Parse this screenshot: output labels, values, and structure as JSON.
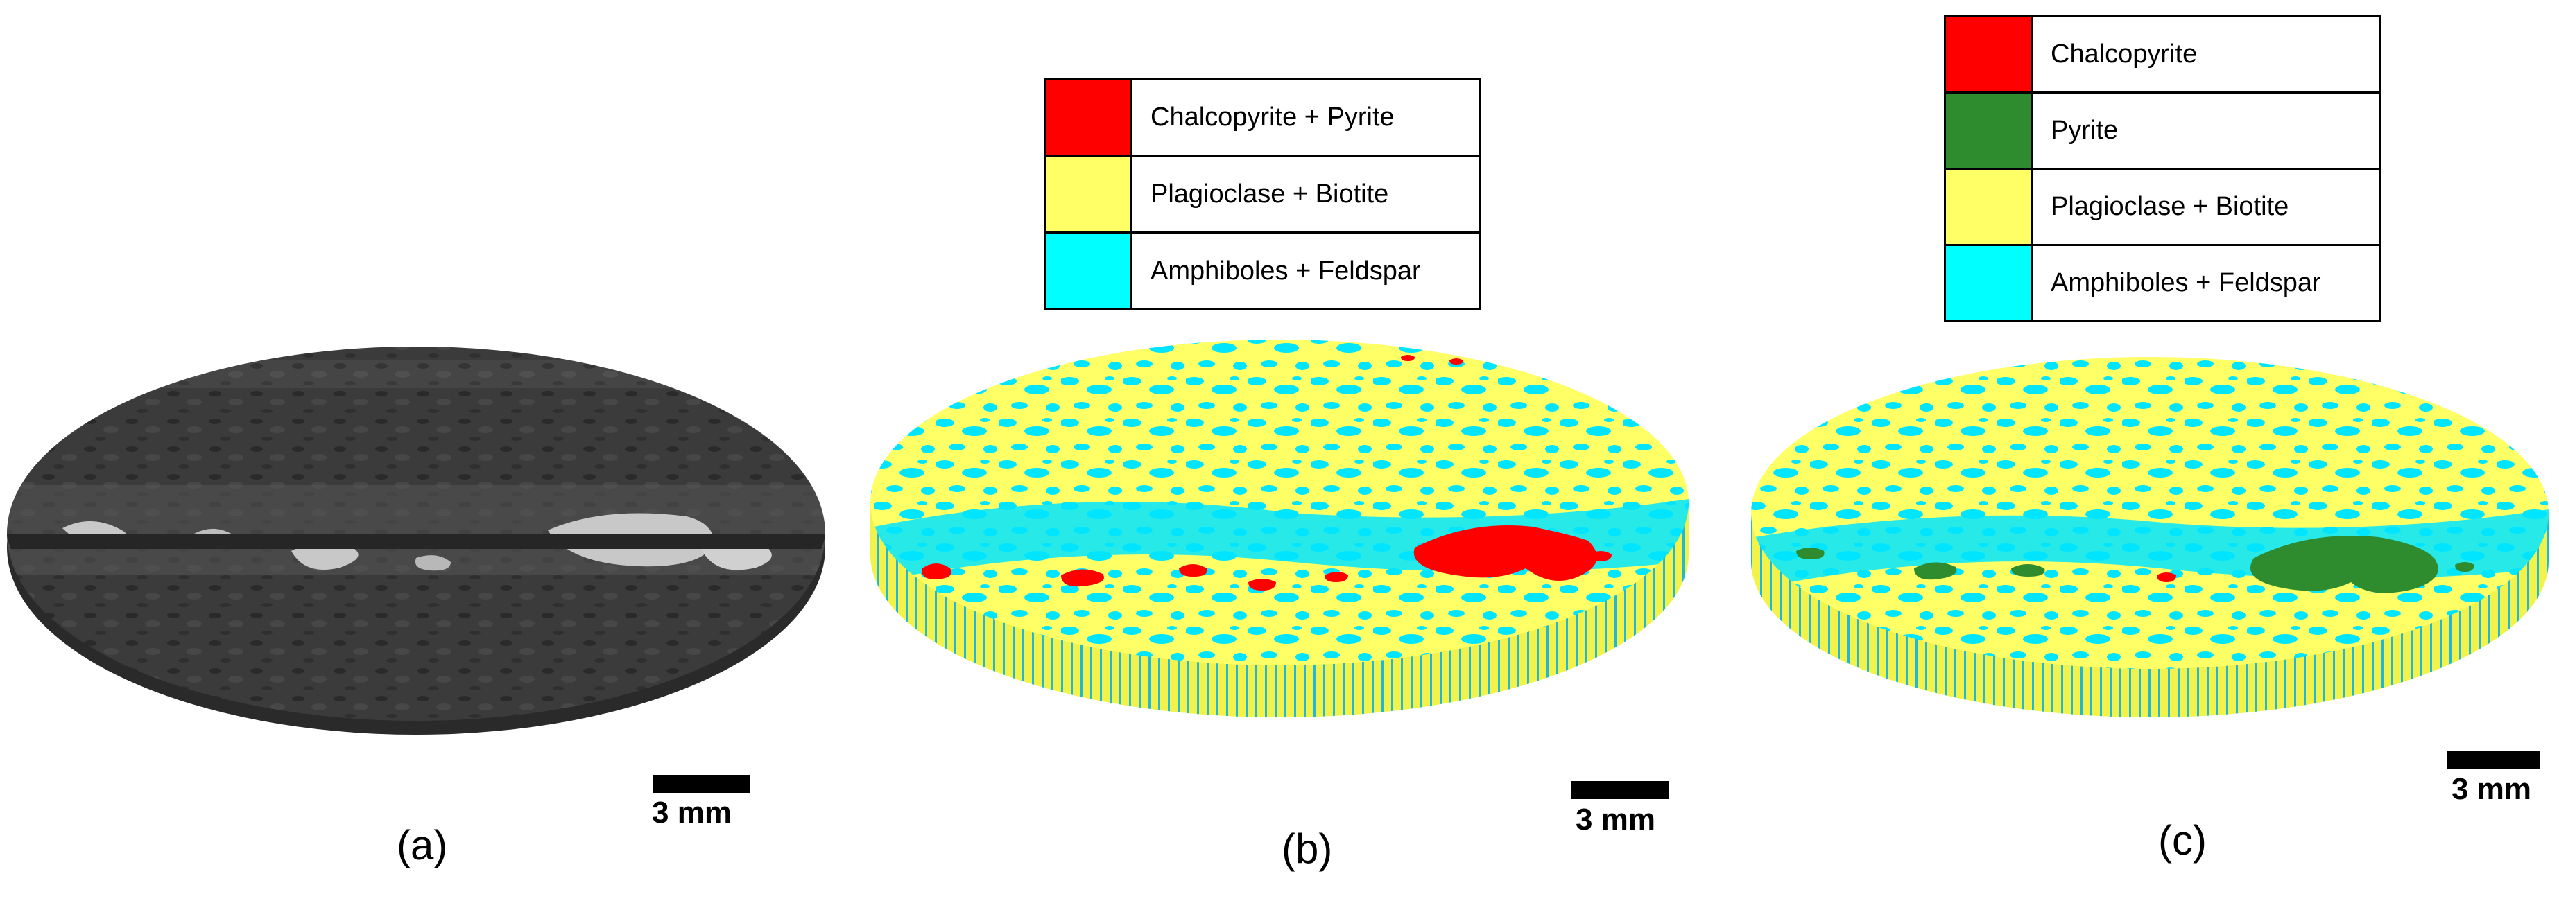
{
  "colors": {
    "red": "#ff0000",
    "green": "#2e8b2e",
    "yellow": "#ffff66",
    "cyan": "#00ffff",
    "scan_dark": "#3a3a3a",
    "scan_bright": "#c8c8c8"
  },
  "panels": [
    {
      "id": "a",
      "caption": "(a)",
      "scale_label": "3 mm",
      "image": "grayscale-ct-scan-of-core-disc"
    },
    {
      "id": "b",
      "caption": "(b)",
      "scale_label": "3 mm",
      "image": "segmented-core-disc-three-phases"
    },
    {
      "id": "c",
      "caption": "(c)",
      "scale_label": "3 mm",
      "image": "segmented-core-disc-four-phases"
    }
  ],
  "legend_b": [
    {
      "label": "Chalcopyrite + Pyrite",
      "color": "#ff0000"
    },
    {
      "label": "Plagioclase + Biotite",
      "color": "#ffff66"
    },
    {
      "label": "Amphiboles +  Feldspar",
      "color": "#00ffff"
    }
  ],
  "legend_c": [
    {
      "label": "Chalcopyrite",
      "color": "#ff0000"
    },
    {
      "label": "Pyrite",
      "color": "#2e8b2e"
    },
    {
      "label": "Plagioclase + Biotite",
      "color": "#ffff66"
    },
    {
      "label": "Amphiboles +  Feldspar",
      "color": "#00ffff"
    }
  ]
}
